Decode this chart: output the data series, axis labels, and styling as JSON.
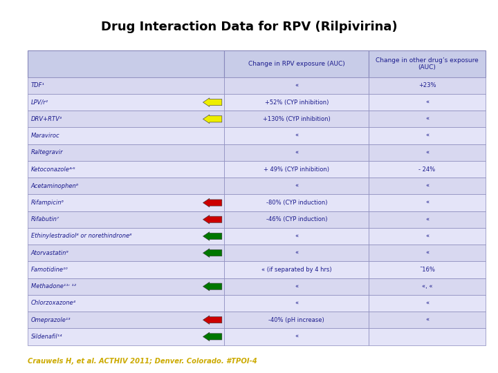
{
  "title": "Drug Interaction Data for RPV (Rilpivirina)",
  "col_headers": [
    "Change in RPV exposure (AUC)",
    "Change in other drug’s exposure\n(AUC)"
  ],
  "rows": [
    {
      "drug": "TDF¹",
      "arrow": null,
      "arrow_color": null,
      "rpv": "«",
      "other": "+23%"
    },
    {
      "drug": "LPV/r²",
      "arrow": "left",
      "arrow_color": "yellow",
      "rpv": "+52% (CYP inhibition)",
      "other": "«"
    },
    {
      "drug": "DRV+RTV³",
      "arrow": "left",
      "arrow_color": "yellow",
      "rpv": "+130% (CYP inhibition)",
      "other": "«"
    },
    {
      "drug": "Maraviroc",
      "arrow": null,
      "arrow_color": null,
      "rpv": "«",
      "other": "«"
    },
    {
      "drug": "Raltegravir",
      "arrow": null,
      "arrow_color": null,
      "rpv": "«",
      "other": "«"
    },
    {
      "drug": "Ketoconazole⁴ʳ⁵",
      "arrow": null,
      "arrow_color": null,
      "rpv": "+ 49% (CYP inhibition)",
      "other": "- 24%"
    },
    {
      "drug": "Acetaminophen⁶",
      "arrow": null,
      "arrow_color": null,
      "rpv": "«",
      "other": "«"
    },
    {
      "drug": "Rifampicin⁶",
      "arrow": "left",
      "arrow_color": "red",
      "rpv": "-80% (CYP induction)",
      "other": "«"
    },
    {
      "drug": "Rifabutin⁷",
      "arrow": "left",
      "arrow_color": "red",
      "rpv": "-46% (CYP induction)",
      "other": "«"
    },
    {
      "drug": "Ethinylestradiol⁸ or norethindrone⁸",
      "arrow": "left",
      "arrow_color": "green",
      "rpv": "«",
      "other": "«"
    },
    {
      "drug": "Atorvastatin⁹",
      "arrow": "left",
      "arrow_color": "green",
      "rpv": "«",
      "other": "«"
    },
    {
      "drug": "Famotidine¹⁰",
      "arrow": null,
      "arrow_color": null,
      "rpv": "« (if separated by 4 hrs)",
      "other": "¯16%"
    },
    {
      "drug": "Methadone¹¹ʳ ¹²",
      "arrow": "left",
      "arrow_color": "green",
      "rpv": "«",
      "other": "«, «"
    },
    {
      "drug": "Chlorzoxazone⁴",
      "arrow": null,
      "arrow_color": null,
      "rpv": "«",
      "other": "«"
    },
    {
      "drug": "Omeprazole¹³",
      "arrow": "left",
      "arrow_color": "red",
      "rpv": "-40% (pH increase)",
      "other": "«"
    },
    {
      "drug": "Sildenafil¹⁴",
      "arrow": "left",
      "arrow_color": "green",
      "rpv": "«",
      "other": ""
    }
  ],
  "footer": "Crauwels H, et al. ACTHIV 2011; Denver. Colorado. #TPOI-4",
  "bg_color": "#c8cce8",
  "title_color": "#000000",
  "footer_color": "#ccaa00",
  "text_color": "#1a1a8c",
  "border_color": "#8888bb",
  "arrow_colors": {
    "yellow": "#eeee00",
    "red": "#cc0000",
    "green": "#007700"
  }
}
